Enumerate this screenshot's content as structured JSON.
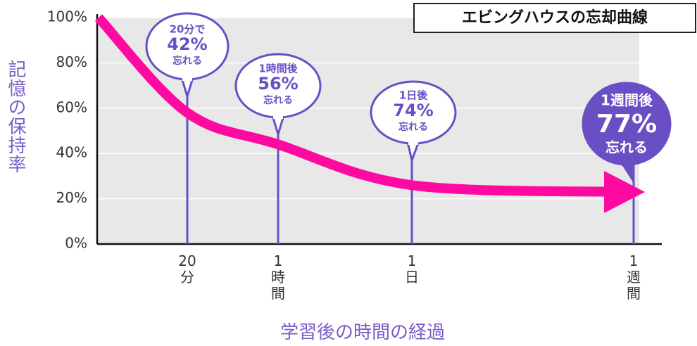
{
  "chart_data": {
    "type": "line",
    "title": "エビングハウスの忘却曲線",
    "y_label": "記憶の保持率",
    "x_label": "学習後の時間の経過",
    "categories": [
      null,
      "20分",
      "1時間",
      "1日",
      "1週間"
    ],
    "values": [
      100,
      58,
      44,
      26,
      23
    ],
    "color": "#ff0aa0",
    "ylim": [
      0,
      100
    ],
    "yticks": [
      {
        "value": 0,
        "label": "0%"
      },
      {
        "value": 20,
        "label": "20%"
      },
      {
        "value": 40,
        "label": "40%"
      },
      {
        "value": 60,
        "label": "60%"
      },
      {
        "value": 80,
        "label": "80%"
      },
      {
        "value": 100,
        "label": "100%"
      }
    ],
    "grid": true,
    "annotations": [
      {
        "lines": [
          "20分で",
          "42%",
          "忘れる"
        ]
      },
      {
        "lines": [
          "1時間後",
          "56%",
          "忘れる"
        ]
      },
      {
        "lines": [
          "1日後",
          "74%",
          "忘れる"
        ]
      },
      {
        "lines": [
          "1週間後",
          "77%",
          "忘れる"
        ]
      }
    ]
  }
}
